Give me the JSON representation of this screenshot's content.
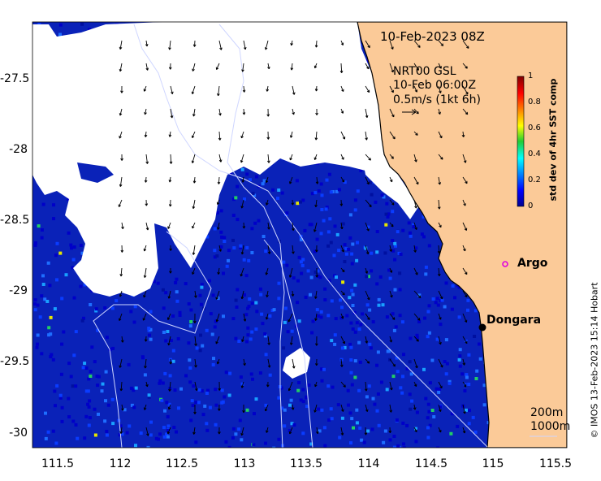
{
  "map": {
    "timestamp_label": "10-Feb-2023 08Z",
    "current_source": "NRT00 GSL",
    "current_time": "10-Feb 06:00Z",
    "arrow_scale": "0.5m/s (1kt 6h)",
    "places": [
      {
        "name": "Argo",
        "marker": "magenta-ring",
        "lon": 115.15,
        "lat": -28.83
      },
      {
        "name": "Dongara",
        "marker": "black-dot",
        "lon": 114.93,
        "lat": -29.25
      }
    ],
    "contour_legend": [
      "200m",
      "1000m"
    ],
    "credit": "© IMOS 13-Feb-2023 15:14 Hobart",
    "land_color": "#fbca98",
    "ocean_color": "#0a1fb3"
  },
  "axes": {
    "x_ticks": [
      "111.5",
      "112",
      "112.5",
      "113",
      "113.5",
      "114",
      "114.5",
      "115",
      "115.5"
    ],
    "y_ticks": [
      "-27.5",
      "-28",
      "-28.5",
      "-29",
      "-29.5",
      "-30"
    ],
    "x_range": [
      111.3,
      115.65
    ],
    "y_range": [
      -30.1,
      -27.05
    ]
  },
  "colorbar": {
    "label": "std dev of 4hr SST comp",
    "ticks": [
      "1",
      "0.8",
      "0.6",
      "0.4",
      "0.2",
      "0"
    ],
    "colormap": "jet",
    "range": [
      0,
      1
    ]
  }
}
